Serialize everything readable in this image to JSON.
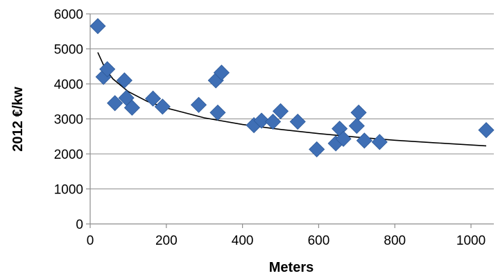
{
  "chart_data": {
    "type": "scatter",
    "title": "",
    "xlabel": "Meters",
    "ylabel": "2012 €/kw",
    "xlim": [
      0,
      1060
    ],
    "ylim": [
      0,
      6000
    ],
    "xticks": [
      0,
      200,
      400,
      600,
      800,
      1000
    ],
    "yticks": [
      0,
      1000,
      2000,
      3000,
      4000,
      5000,
      6000
    ],
    "grid": "horizontal",
    "legend": "none",
    "marker": "diamond",
    "marker_color": "#3f6fb5",
    "trendline_color": "#000000",
    "series": [
      {
        "x": [
          20,
          35,
          45,
          65,
          90,
          95,
          110,
          165,
          190,
          285,
          330,
          335,
          345,
          430,
          450,
          480,
          500,
          545,
          595,
          645,
          655,
          665,
          700,
          705,
          720,
          760,
          1040
        ],
        "y": [
          5650,
          4200,
          4420,
          3450,
          4100,
          3600,
          3320,
          3580,
          3350,
          3400,
          4100,
          3180,
          4320,
          2820,
          2950,
          2920,
          3220,
          2920,
          2130,
          2300,
          2720,
          2430,
          2800,
          3180,
          2380,
          2340,
          2680
        ]
      }
    ],
    "trendline": {
      "type": "logarithmic",
      "x": [
        20,
        40,
        60,
        100,
        150,
        200,
        300,
        400,
        500,
        600,
        700,
        800,
        900,
        1040
      ],
      "y": [
        4900,
        4420,
        4140,
        3780,
        3500,
        3310,
        3030,
        2840,
        2700,
        2580,
        2480,
        2390,
        2320,
        2230
      ]
    }
  }
}
